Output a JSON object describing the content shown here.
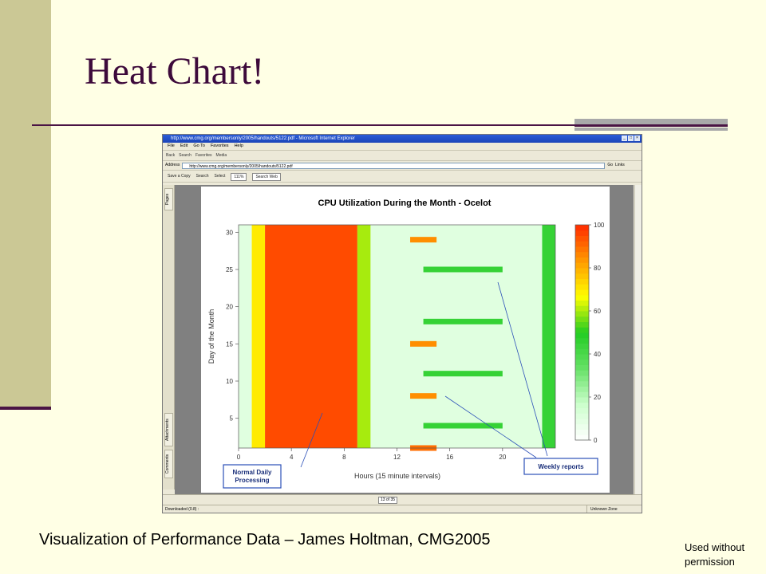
{
  "slide": {
    "title": "Heat Chart!",
    "caption": "Visualization of Performance Data – James Holtman, CMG2005",
    "note": "Used without permission"
  },
  "browser": {
    "window_title": "http://www.cmg.org/membersonly/2005/handouts/5122.pdf - Microsoft Internet Explorer",
    "menu": [
      "File",
      "Edit",
      "Go To",
      "Favorites",
      "Help"
    ],
    "toolbar": [
      "Back",
      "Search",
      "Favorites",
      "Media"
    ],
    "address_label": "Address",
    "address": "http://www.cmg.org/membersonly/2005/handouts/5122.pdf",
    "go_label": "Go",
    "links_label": "Links",
    "status": "Downloaded (0.8) :",
    "zone": "Unknown Zone"
  },
  "pdf_viewer": {
    "save_label": "Save a Copy",
    "search_label": "Search",
    "select_label": "Select",
    "zoom": "111%",
    "search_web": "Search Web",
    "page_indicator": "13 of 35",
    "side_tabs": [
      "Pages",
      "Attachments",
      "Comments"
    ]
  },
  "chart_data": {
    "type": "heatmap",
    "title": "CPU Utilization During the Month - Ocelot",
    "xlabel": "Hours (15 minute intervals)",
    "ylabel": "Day of the Month",
    "xlim": [
      0,
      24
    ],
    "ylim": [
      1,
      31
    ],
    "x_ticks": [
      0,
      4,
      8,
      12,
      16,
      20
    ],
    "y_ticks": [
      5,
      10,
      15,
      20,
      25,
      30
    ],
    "colorbar": {
      "min": 0,
      "max": 100,
      "ticks": [
        0,
        20,
        40,
        60,
        80,
        100
      ],
      "colors": [
        "#ffffff",
        "#ccffcc",
        "#66e066",
        "#22cc22",
        "#ffff00",
        "#ff9900",
        "#ff2a00"
      ]
    },
    "legend": "colorbar right",
    "annotations": [
      {
        "text": "Normal Daily Processing"
      },
      {
        "text": "Weekly reports"
      }
    ],
    "approx_pattern": [
      {
        "hours": [
          0,
          1
        ],
        "days": [
          1,
          31
        ],
        "value": 10
      },
      {
        "hours": [
          1,
          2
        ],
        "days": [
          1,
          31
        ],
        "value": 70
      },
      {
        "hours": [
          2,
          9
        ],
        "days": [
          1,
          31
        ],
        "value": 95
      },
      {
        "hours": [
          9,
          10
        ],
        "days": [
          1,
          31
        ],
        "value": 60
      },
      {
        "hours": [
          10,
          23
        ],
        "days": [
          1,
          31
        ],
        "value": 10
      },
      {
        "hours": [
          23,
          24
        ],
        "days": [
          1,
          31
        ],
        "value": 45
      },
      {
        "hours": [
          13,
          15
        ],
        "days": [
          1,
          1
        ],
        "value": 90
      },
      {
        "hours": [
          14,
          20
        ],
        "days": [
          4,
          4
        ],
        "value": 45
      },
      {
        "hours": [
          13,
          15
        ],
        "days": [
          8,
          8
        ],
        "value": 85
      },
      {
        "hours": [
          14,
          20
        ],
        "days": [
          11,
          11
        ],
        "value": 45
      },
      {
        "hours": [
          13,
          15
        ],
        "days": [
          15,
          15
        ],
        "value": 85
      },
      {
        "hours": [
          14,
          20
        ],
        "days": [
          18,
          18
        ],
        "value": 45
      },
      {
        "hours": [
          14,
          20
        ],
        "days": [
          25,
          25
        ],
        "value": 45
      },
      {
        "hours": [
          13,
          15
        ],
        "days": [
          29,
          29
        ],
        "value": 85
      }
    ]
  }
}
